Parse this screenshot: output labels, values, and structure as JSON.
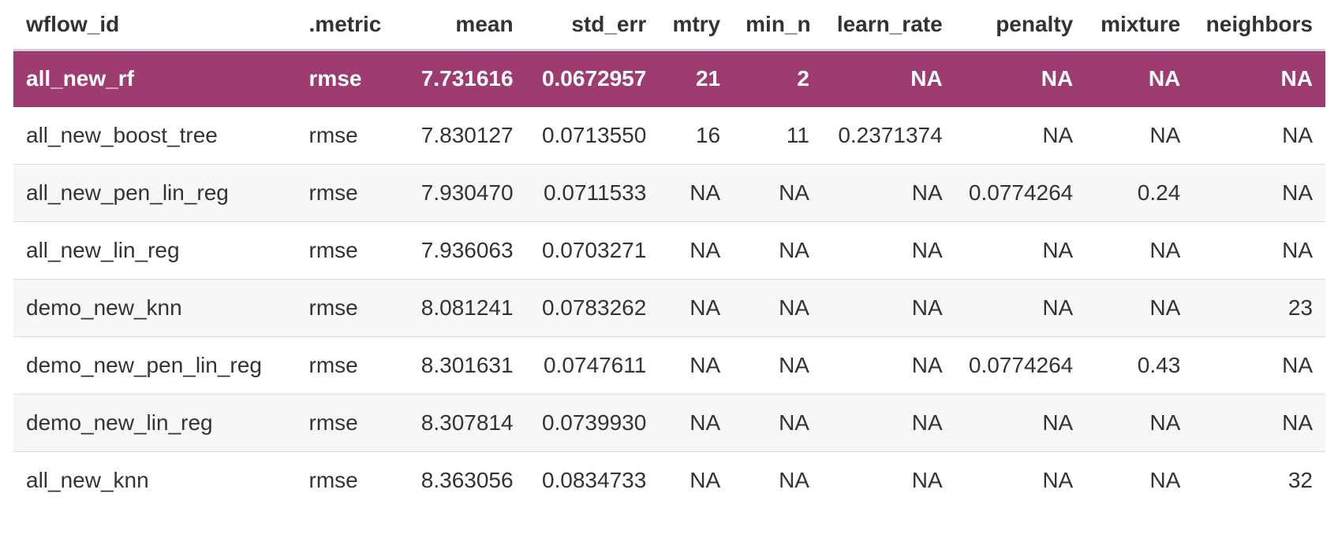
{
  "table": {
    "columns": [
      {
        "key": "wflow_id",
        "label": "wflow_id",
        "align": "left"
      },
      {
        "key": "metric",
        "label": ".metric",
        "align": "left"
      },
      {
        "key": "mean",
        "label": "mean",
        "align": "right"
      },
      {
        "key": "std_err",
        "label": "std_err",
        "align": "right"
      },
      {
        "key": "mtry",
        "label": "mtry",
        "align": "right"
      },
      {
        "key": "min_n",
        "label": "min_n",
        "align": "right"
      },
      {
        "key": "learn_rate",
        "label": "learn_rate",
        "align": "right"
      },
      {
        "key": "penalty",
        "label": "penalty",
        "align": "right"
      },
      {
        "key": "mixture",
        "label": "mixture",
        "align": "right"
      },
      {
        "key": "neighbors",
        "label": "neighbors",
        "align": "right"
      }
    ],
    "highlight_color": "#9e3c72",
    "rows": [
      {
        "highlight": true,
        "cells": [
          "all_new_rf",
          "rmse",
          "7.731616",
          "0.0672957",
          "21",
          "2",
          "NA",
          "NA",
          "NA",
          "NA"
        ]
      },
      {
        "highlight": false,
        "cells": [
          "all_new_boost_tree",
          "rmse",
          "7.830127",
          "0.0713550",
          "16",
          "11",
          "0.2371374",
          "NA",
          "NA",
          "NA"
        ]
      },
      {
        "highlight": false,
        "cells": [
          "all_new_pen_lin_reg",
          "rmse",
          "7.930470",
          "0.0711533",
          "NA",
          "NA",
          "NA",
          "0.0774264",
          "0.24",
          "NA"
        ]
      },
      {
        "highlight": false,
        "cells": [
          "all_new_lin_reg",
          "rmse",
          "7.936063",
          "0.0703271",
          "NA",
          "NA",
          "NA",
          "NA",
          "NA",
          "NA"
        ]
      },
      {
        "highlight": false,
        "cells": [
          "demo_new_knn",
          "rmse",
          "8.081241",
          "0.0783262",
          "NA",
          "NA",
          "NA",
          "NA",
          "NA",
          "23"
        ]
      },
      {
        "highlight": false,
        "cells": [
          "demo_new_pen_lin_reg",
          "rmse",
          "8.301631",
          "0.0747611",
          "NA",
          "NA",
          "NA",
          "0.0774264",
          "0.43",
          "NA"
        ]
      },
      {
        "highlight": false,
        "cells": [
          "demo_new_lin_reg",
          "rmse",
          "8.307814",
          "0.0739930",
          "NA",
          "NA",
          "NA",
          "NA",
          "NA",
          "NA"
        ]
      },
      {
        "highlight": false,
        "cells": [
          "all_new_knn",
          "rmse",
          "8.363056",
          "0.0834733",
          "NA",
          "NA",
          "NA",
          "NA",
          "NA",
          "32"
        ]
      }
    ]
  }
}
